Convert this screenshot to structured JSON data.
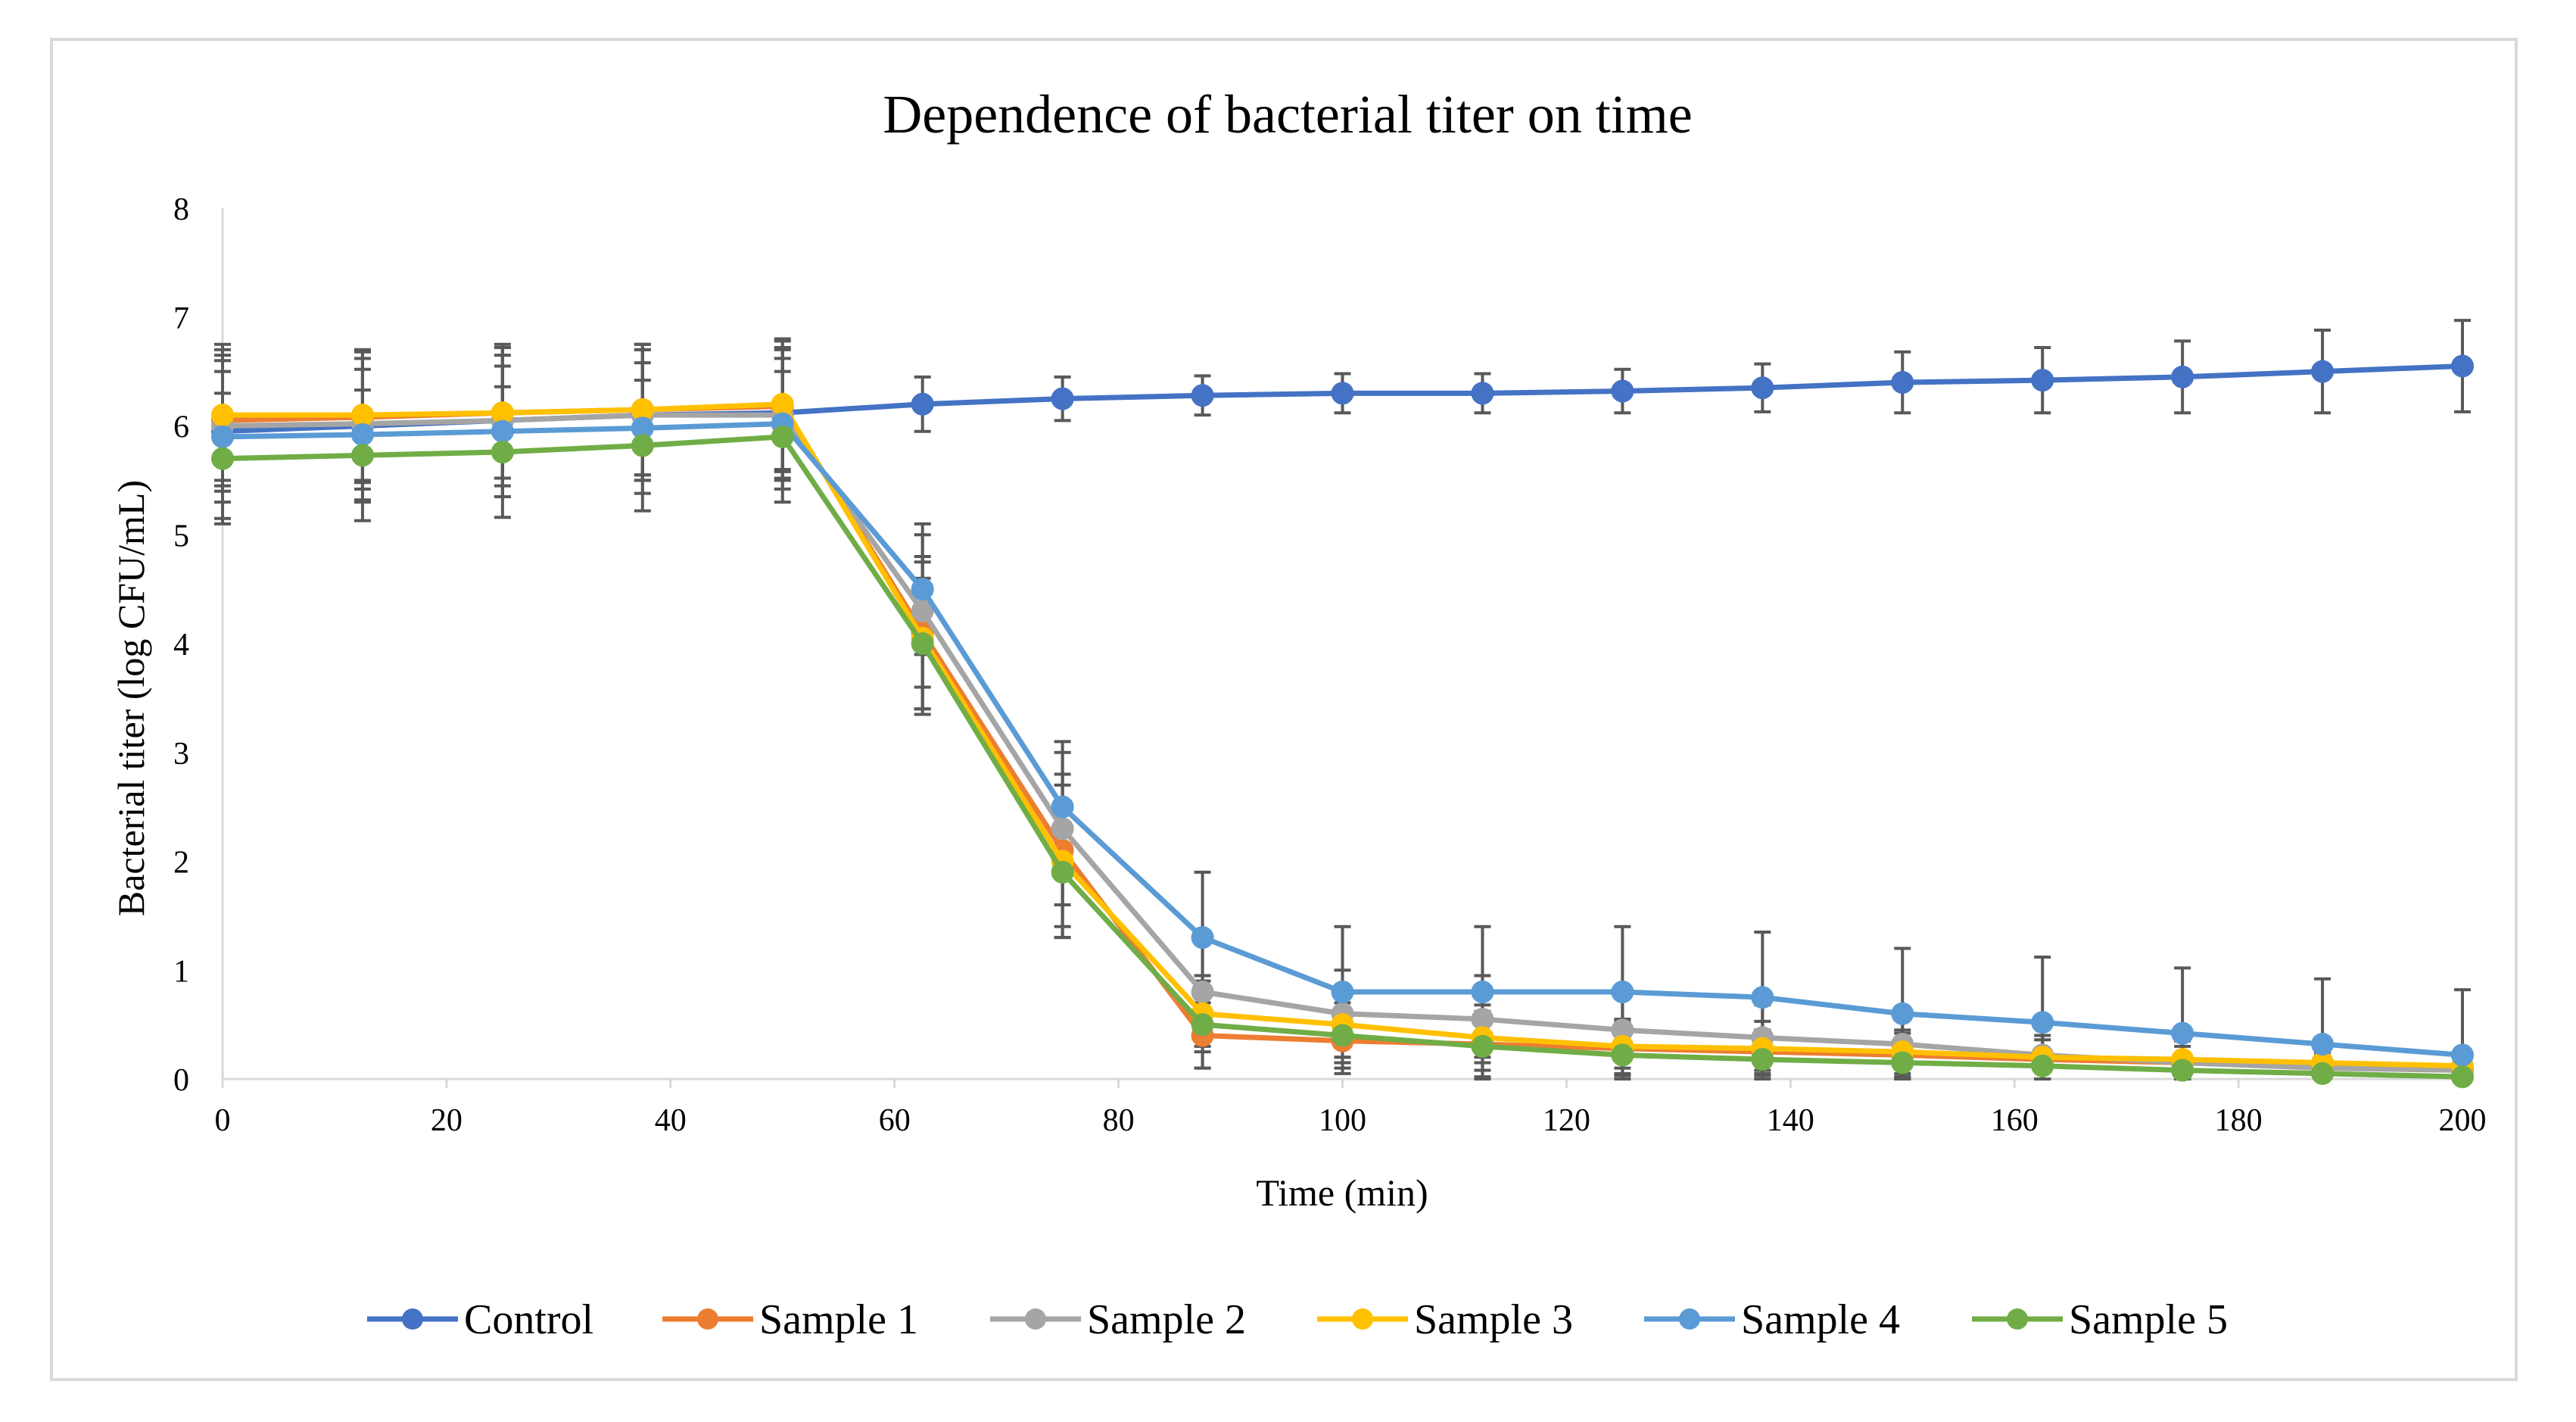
{
  "chart_data": {
    "type": "line",
    "title": "Dependence of bacterial titer on time",
    "xlabel": "Time (min)",
    "ylabel": "Bacterial titer (log CFU/mL)",
    "xlim": [
      0,
      200
    ],
    "ylim": [
      0,
      8
    ],
    "xticks": [
      "0",
      "20",
      "40",
      "60",
      "80",
      "100",
      "120",
      "140",
      "160",
      "180",
      "200"
    ],
    "yticks": [
      "0",
      "1",
      "2",
      "3",
      "4",
      "5",
      "6",
      "7",
      "8"
    ],
    "grid": false,
    "legend_position": "bottom",
    "error_bars": true,
    "series": [
      {
        "name": "Control",
        "color": "#4472c4",
        "x": [
          0,
          12.5,
          25,
          37.5,
          50,
          62.5,
          75,
          87.5,
          100,
          112.5,
          125,
          137.5,
          150,
          162.5,
          175,
          187.5,
          200
        ],
        "y": [
          5.95,
          6.0,
          6.05,
          6.1,
          6.12,
          6.2,
          6.25,
          6.28,
          6.3,
          6.3,
          6.32,
          6.35,
          6.4,
          6.42,
          6.45,
          6.5,
          6.55
        ],
        "err": [
          0.8,
          0.7,
          0.7,
          0.6,
          0.6,
          0.25,
          0.2,
          0.18,
          0.18,
          0.18,
          0.2,
          0.22,
          0.28,
          0.3,
          0.33,
          0.38,
          0.42
        ]
      },
      {
        "name": "Sample 1",
        "color": "#ed7d31",
        "x": [
          0,
          12.5,
          25,
          37.5,
          50,
          62.5,
          75,
          87.5,
          100,
          112.5,
          125,
          137.5,
          150,
          162.5,
          175,
          187.5,
          200
        ],
        "y": [
          6.05,
          6.08,
          6.12,
          6.15,
          6.18,
          4.1,
          2.1,
          0.4,
          0.35,
          0.32,
          0.28,
          0.25,
          0.22,
          0.18,
          0.15,
          0.12,
          0.1
        ],
        "err": [
          0.6,
          0.6,
          0.6,
          0.6,
          0.6,
          0.7,
          0.7,
          0.3,
          0.3,
          0.3,
          0.25,
          0.2,
          0.2,
          0.18,
          0.15,
          0.12,
          0.1
        ]
      },
      {
        "name": "Sample 2",
        "color": "#a5a5a5",
        "x": [
          0,
          12.5,
          25,
          37.5,
          50,
          62.5,
          75,
          87.5,
          100,
          112.5,
          125,
          137.5,
          150,
          162.5,
          175,
          187.5,
          200
        ],
        "y": [
          6.0,
          6.02,
          6.05,
          6.1,
          6.1,
          4.3,
          2.3,
          0.8,
          0.6,
          0.55,
          0.45,
          0.38,
          0.32,
          0.22,
          0.15,
          0.1,
          0.08
        ],
        "err": [
          0.6,
          0.6,
          0.6,
          0.6,
          0.6,
          0.7,
          0.7,
          0.5,
          0.4,
          0.4,
          0.35,
          0.3,
          0.3,
          0.25,
          0.2,
          0.15,
          0.1
        ]
      },
      {
        "name": "Sample 3",
        "color": "#ffc000",
        "x": [
          0,
          12.5,
          25,
          37.5,
          50,
          62.5,
          75,
          87.5,
          100,
          112.5,
          125,
          137.5,
          150,
          162.5,
          175,
          187.5,
          200
        ],
        "y": [
          6.1,
          6.1,
          6.12,
          6.15,
          6.2,
          4.05,
          2.0,
          0.6,
          0.5,
          0.38,
          0.3,
          0.28,
          0.25,
          0.2,
          0.18,
          0.15,
          0.12
        ],
        "err": [
          0.6,
          0.6,
          0.6,
          0.6,
          0.6,
          0.7,
          0.7,
          0.35,
          0.35,
          0.3,
          0.25,
          0.25,
          0.2,
          0.2,
          0.18,
          0.15,
          0.12
        ]
      },
      {
        "name": "Sample 4",
        "color": "#5b9bd5",
        "x": [
          0,
          12.5,
          25,
          37.5,
          50,
          62.5,
          75,
          87.5,
          100,
          112.5,
          125,
          137.5,
          150,
          162.5,
          175,
          187.5,
          200
        ],
        "y": [
          5.9,
          5.92,
          5.95,
          5.98,
          6.02,
          4.5,
          2.5,
          1.3,
          0.8,
          0.8,
          0.8,
          0.75,
          0.6,
          0.52,
          0.42,
          0.32,
          0.22
        ],
        "err": [
          0.6,
          0.6,
          0.6,
          0.6,
          0.6,
          0.6,
          0.6,
          0.6,
          0.6,
          0.6,
          0.6,
          0.6,
          0.6,
          0.6,
          0.6,
          0.6,
          0.6
        ]
      },
      {
        "name": "Sample 5",
        "color": "#70ad47",
        "x": [
          0,
          12.5,
          25,
          37.5,
          50,
          62.5,
          75,
          87.5,
          100,
          112.5,
          125,
          137.5,
          150,
          162.5,
          175,
          187.5,
          200
        ],
        "y": [
          5.7,
          5.73,
          5.76,
          5.82,
          5.9,
          4.0,
          1.9,
          0.5,
          0.4,
          0.3,
          0.22,
          0.18,
          0.15,
          0.12,
          0.08,
          0.05,
          0.02
        ],
        "err": [
          0.6,
          0.6,
          0.6,
          0.6,
          0.6,
          0.6,
          0.6,
          0.4,
          0.3,
          0.3,
          0.25,
          0.2,
          0.2,
          0.15,
          0.12,
          0.1,
          0.05
        ]
      }
    ]
  }
}
